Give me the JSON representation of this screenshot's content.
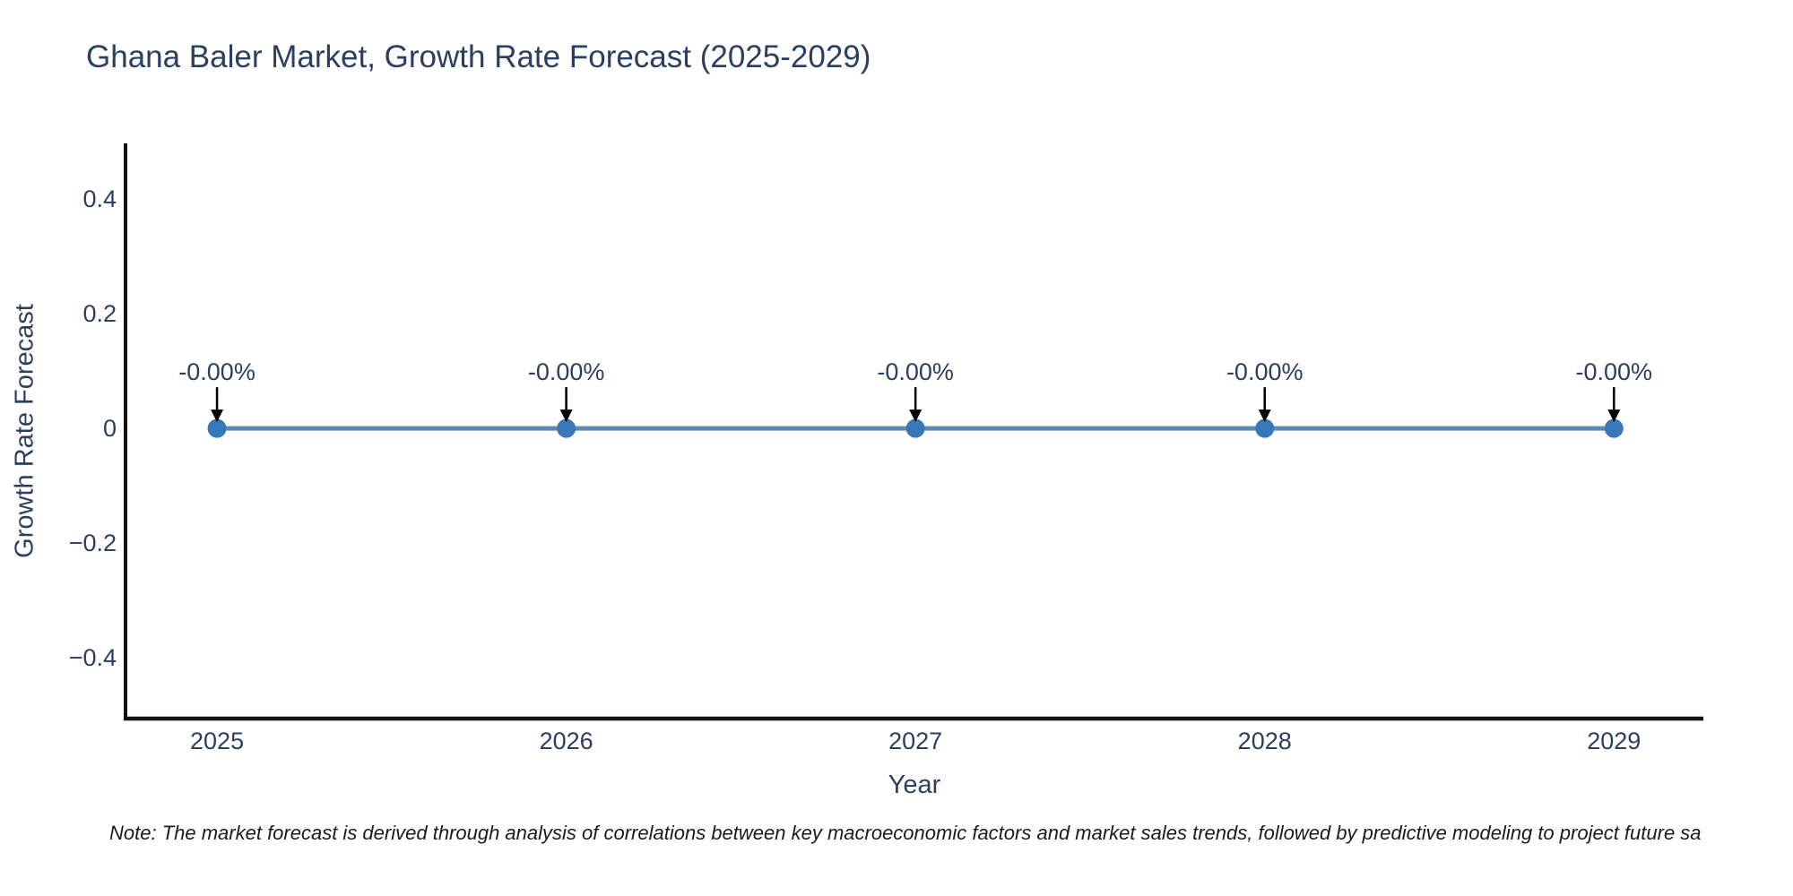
{
  "note": "Note: The market forecast is derived through analysis of correlations between key macroeconomic factors and market sales trends, followed by predictive modeling to project future sa",
  "chart_data": {
    "type": "line",
    "title": "Ghana Baler Market, Growth Rate Forecast (2025-2029)",
    "xlabel": "Year",
    "ylabel": "Growth Rate Forecast",
    "x": [
      2025,
      2026,
      2027,
      2028,
      2029
    ],
    "series": [
      {
        "name": "Growth Rate Forecast",
        "values": [
          0,
          0,
          0,
          0,
          0
        ]
      }
    ],
    "annotations": [
      "-0.00%",
      "-0.00%",
      "-0.00%",
      "-0.00%",
      "-0.00%"
    ],
    "x_ticks": [
      "2025",
      "2026",
      "2027",
      "2028",
      "2029"
    ],
    "y_ticks": {
      "values": [
        0.4,
        0.2,
        0,
        -0.2,
        -0.4
      ],
      "labels": [
        "0.4",
        "0.2",
        "0",
        "−0.2",
        "−0.4"
      ]
    },
    "xlim": [
      2024.738,
      2029.256
    ],
    "ylim": [
      -0.506,
      0.497
    ],
    "grid": false,
    "legend_position": "none",
    "colors": {
      "line": "#5b89b4",
      "marker": "#3778b9",
      "axis": "#111111",
      "arrow": "#000000",
      "text": "#2a3f5f"
    }
  }
}
